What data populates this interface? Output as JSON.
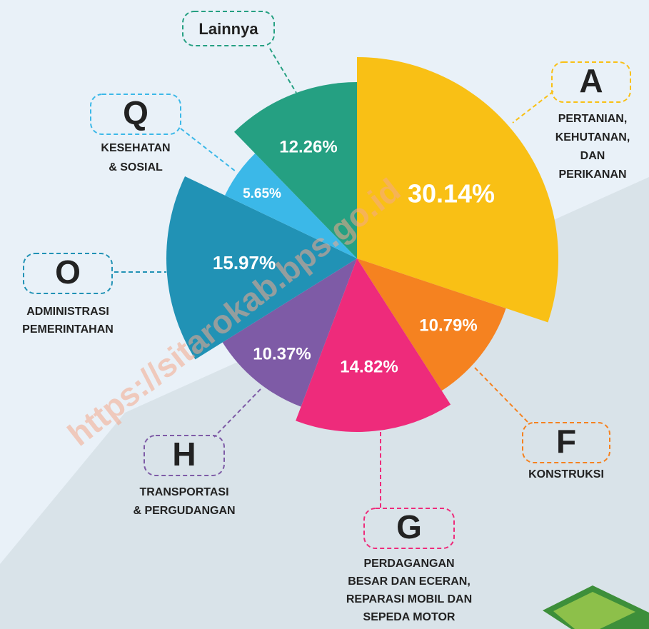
{
  "chart_data": {
    "type": "pie",
    "categories": [
      "A",
      "F",
      "G",
      "H",
      "O",
      "Q",
      "Lainnya"
    ],
    "descriptions": [
      [
        "PERTANIAN,",
        "KEHUTANAN,",
        "DAN",
        "PERIKANAN"
      ],
      [
        "KONSTRUKSI"
      ],
      [
        "PERDAGANGAN",
        "BESAR DAN ECERAN,",
        "REPARASI MOBIL DAN",
        "SEPEDA MOTOR"
      ],
      [
        "TRANSPORTASI",
        "& PERGUDANGAN"
      ],
      [
        "ADMINISTRASI",
        "PEMERINTAHAN"
      ],
      [
        "KESEHATAN",
        "& SOSIAL"
      ],
      []
    ],
    "values": [
      30.14,
      10.79,
      14.82,
      10.37,
      15.97,
      5.65,
      12.26
    ],
    "value_labels": [
      "30.14%",
      "10.79%",
      "14.82%",
      "10.37%",
      "15.97%",
      "5.65%",
      "12.26%"
    ],
    "colors": [
      "#f9c015",
      "#f58220",
      "#ee2b7b",
      "#7e5ba6",
      "#2192b5",
      "#3bb8e8",
      "#25a082"
    ],
    "watermark": "https://sitarokab.bps.go.id"
  }
}
